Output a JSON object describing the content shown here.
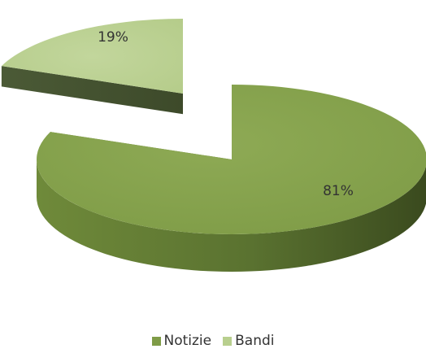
{
  "chart_data": {
    "type": "pie",
    "style": "3d-exploded",
    "categories": [
      "Notizie",
      "Bandi"
    ],
    "values": [
      81,
      19
    ],
    "value_labels": [
      "81%",
      "19%"
    ],
    "colors": {
      "Notizie": "#8aa550",
      "Bandi": "#b8cf8e"
    },
    "legend": {
      "position": "bottom",
      "items": [
        {
          "label": "Notizie",
          "color": "#7f9c47"
        },
        {
          "label": "Bandi",
          "color": "#b8cf8e"
        }
      ]
    },
    "title": ""
  }
}
